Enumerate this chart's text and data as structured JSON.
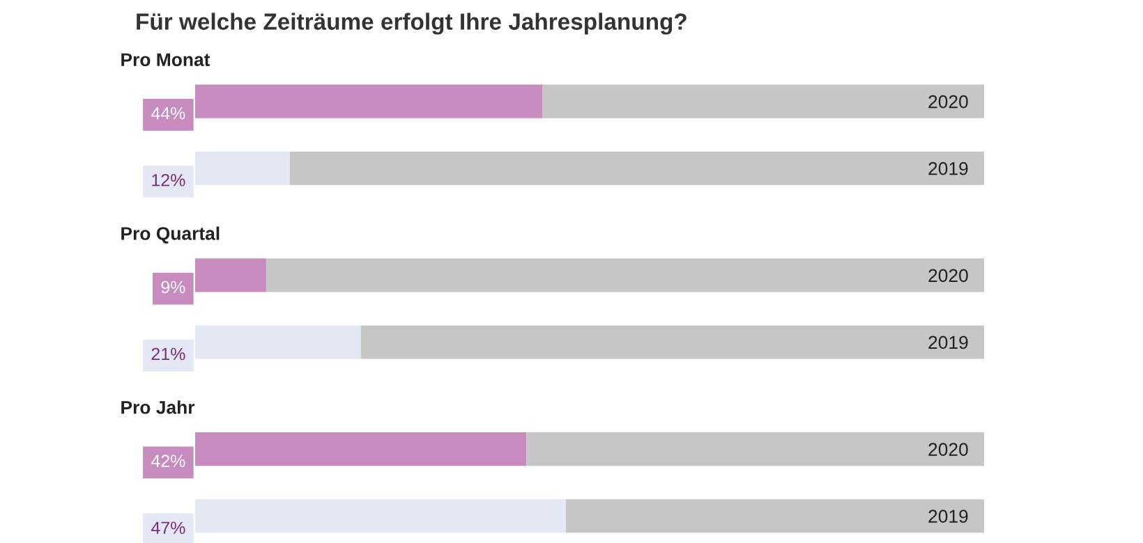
{
  "chart_data": {
    "type": "bar",
    "orientation": "horizontal",
    "stacked": true,
    "title": "Für welche Zeiträume erfolgt Ihre Jahresplanung?",
    "categories": [
      "2020",
      "2019",
      "2020",
      "2019",
      "2020",
      "2019"
    ],
    "series": [
      {
        "colors": [
          "#c78bbf",
          "#e4e7f4",
          "#c78bbf",
          "#e4e7f4",
          "#c78bbf",
          "#e4e7f4"
        ],
        "values": [
          44,
          12,
          9,
          21,
          42,
          47
        ],
        "value_labels": [
          "44%",
          "12%",
          "9%",
          "21%",
          "42%",
          "47%"
        ]
      },
      {
        "color": "#c6c6c6",
        "values": [
          56,
          88,
          91,
          79,
          58,
          53
        ]
      }
    ],
    "annotations": [
      "Pro Monat",
      "Pro Quartal",
      "Pro Jahr"
    ],
    "xlim": [
      0,
      100
    ],
    "tick_labels": "y",
    "grid": false,
    "legend": false
  }
}
